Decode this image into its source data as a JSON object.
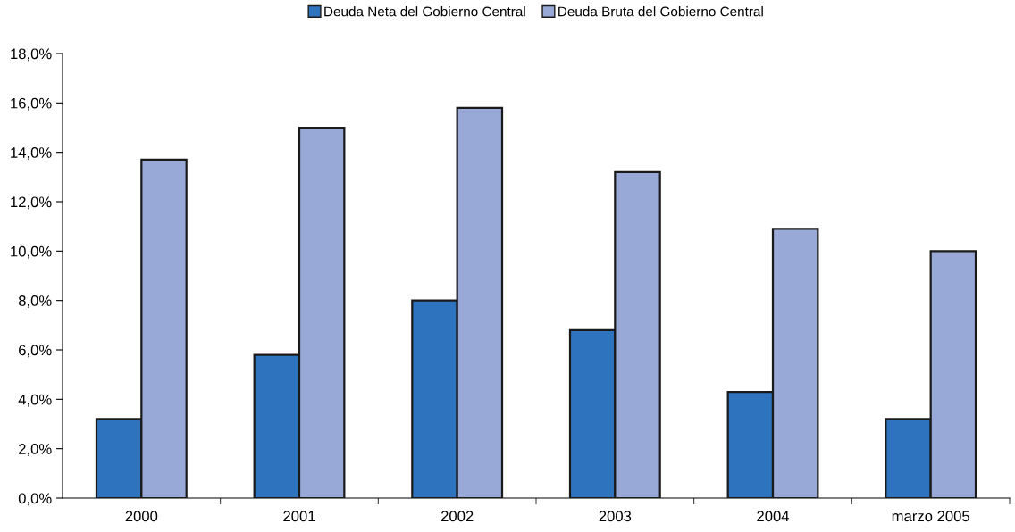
{
  "chart_data": {
    "type": "bar",
    "categories": [
      "2000",
      "2001",
      "2002",
      "2003",
      "2004",
      "marzo 2005"
    ],
    "series": [
      {
        "name": "Deuda Neta del Gobierno Central",
        "color": "#2e73bd",
        "values": [
          3.2,
          5.8,
          8.0,
          6.8,
          4.3,
          3.2
        ]
      },
      {
        "name": "Deuda Bruta del Gobierno Central",
        "color": "#98a9d7",
        "values": [
          13.7,
          15.0,
          15.8,
          13.2,
          10.9,
          10.0
        ]
      }
    ],
    "ylim": [
      0,
      18
    ],
    "yticks": [
      {
        "value": 0,
        "label": "0,0%"
      },
      {
        "value": 2,
        "label": "2,0%"
      },
      {
        "value": 4,
        "label": "4,0%"
      },
      {
        "value": 6,
        "label": "6,0%"
      },
      {
        "value": 8,
        "label": "8,0%"
      },
      {
        "value": 10,
        "label": "10,0%"
      },
      {
        "value": 12,
        "label": "12,0%"
      },
      {
        "value": 14,
        "label": "14,0%"
      },
      {
        "value": 16,
        "label": "16,0%"
      },
      {
        "value": 18,
        "label": "18,0%"
      }
    ],
    "grid": false,
    "legend": "top"
  }
}
